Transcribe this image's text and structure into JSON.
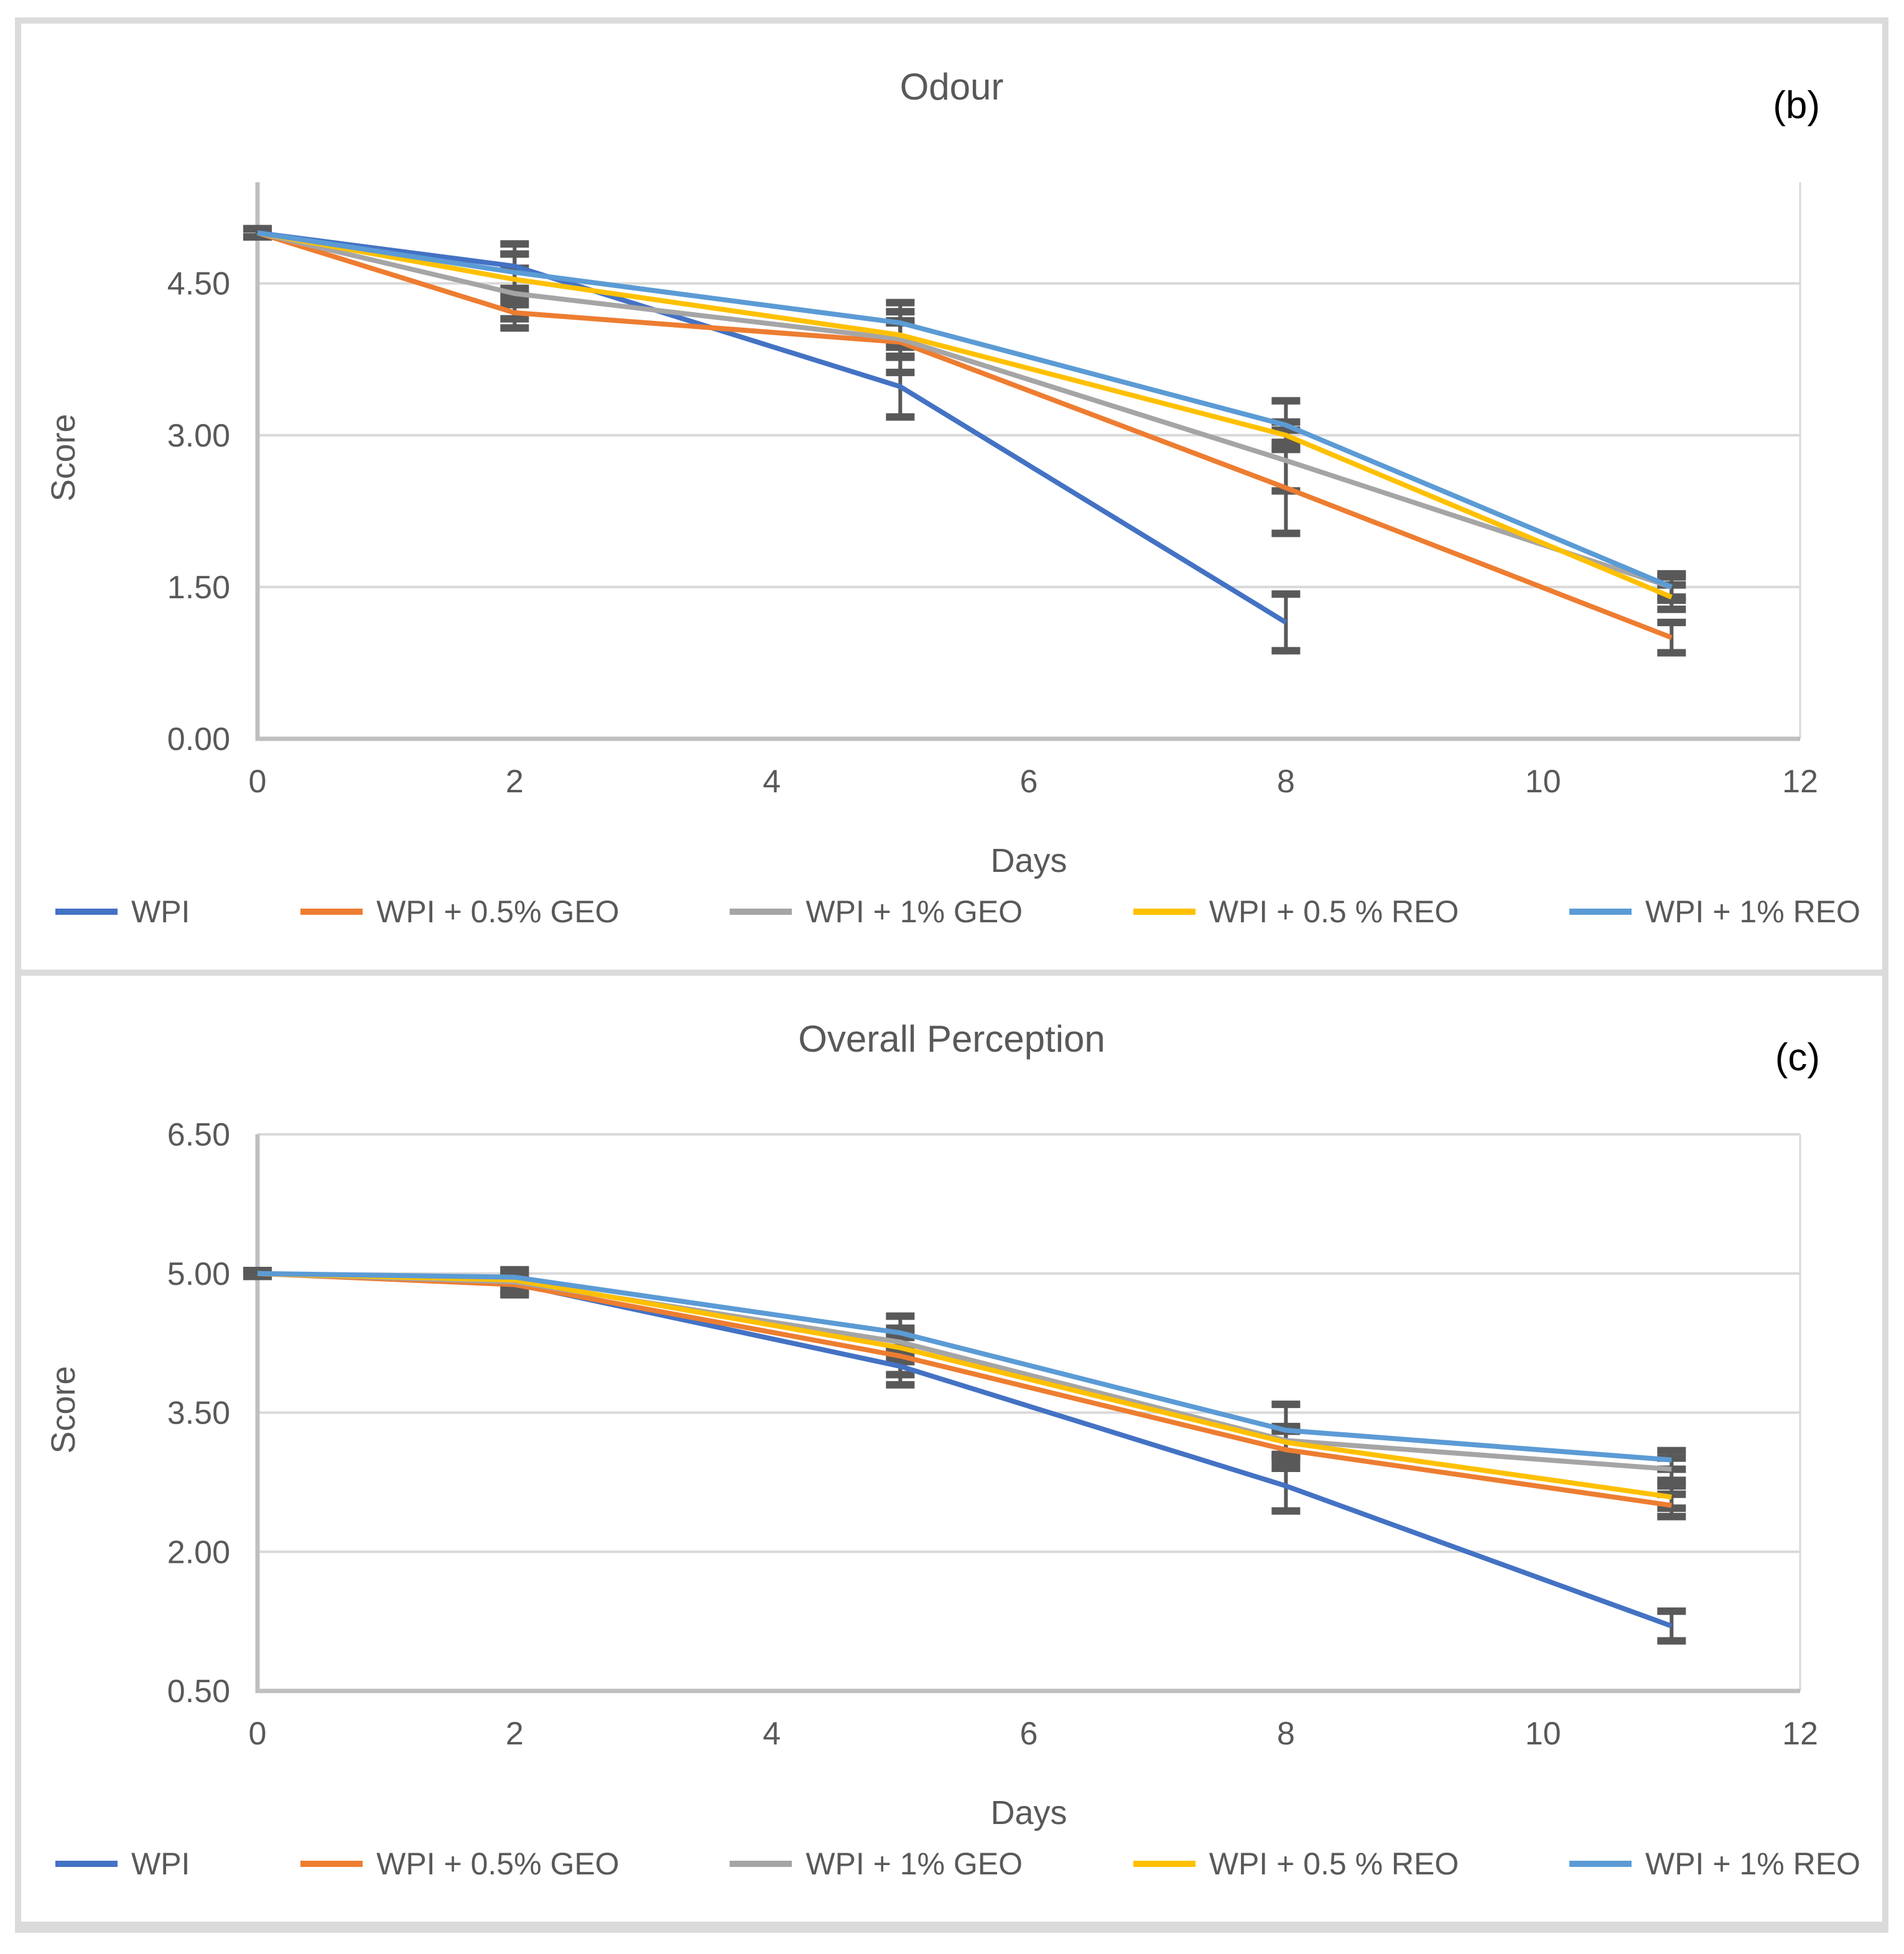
{
  "figure": {
    "background": "#FFFFFF",
    "border_color": "#DBDBDB",
    "gridline_color": "#D9D9D9",
    "axis_line_color": "#BFBFBF",
    "error_bar_color": "#595959",
    "text_color": "#595959",
    "panel_label_color": "#000000"
  },
  "chart_data": [
    {
      "type": "line",
      "id": "odour",
      "title": "Odour",
      "panel_label": "(b)",
      "xlabel": "Days",
      "ylabel": "Score",
      "grid": true,
      "legend_position": "bottom",
      "xlim": [
        0,
        12
      ],
      "ylim": [
        0,
        5.5
      ],
      "x_ticks": [
        "0",
        "2",
        "4",
        "6",
        "8",
        "10",
        "12"
      ],
      "y_ticks": [
        "0.00",
        "1.50",
        "3.00",
        "4.50"
      ],
      "x": [
        0,
        2,
        5,
        8,
        11
      ],
      "series": [
        {
          "name": "WPI",
          "color": "#4472C4",
          "values": [
            5.0,
            4.67,
            3.48,
            1.15,
            null
          ],
          "errors": [
            0.04,
            0.22,
            0.3,
            0.28,
            null
          ]
        },
        {
          "name": "WPI + 0.5% GEO",
          "color": "#ED7D31",
          "values": [
            5.0,
            4.21,
            3.92,
            2.48,
            1.0
          ],
          "errors": [
            0.04,
            0.15,
            0.3,
            0.45,
            0.15
          ]
        },
        {
          "name": "WPI + 1% GEO",
          "color": "#A5A5A5",
          "values": [
            5.0,
            4.4,
            3.95,
            2.75,
            1.5
          ],
          "errors": [
            0.04,
            0.25,
            0.18,
            0.3,
            0.1
          ]
        },
        {
          "name": "WPI + 0.5 % REO",
          "color": "#FFC000",
          "values": [
            5.0,
            4.54,
            3.99,
            3.0,
            1.4
          ],
          "errors": [
            0.04,
            0.25,
            0.12,
            0.13,
            0.12
          ]
        },
        {
          "name": "WPI + 1% REO",
          "color": "#5B9BD5",
          "values": [
            5.0,
            4.61,
            4.11,
            3.1,
            1.5
          ],
          "errors": [
            0.04,
            0.18,
            0.2,
            0.24,
            0.13
          ]
        }
      ]
    },
    {
      "type": "line",
      "id": "overall-perception",
      "title": "Overall Perception",
      "panel_label": "(c)",
      "xlabel": "Days",
      "ylabel": "Score",
      "grid": true,
      "legend_position": "bottom",
      "xlim": [
        0,
        12
      ],
      "ylim": [
        0.5,
        6.5
      ],
      "x_ticks": [
        "0",
        "2",
        "4",
        "6",
        "8",
        "10",
        "12"
      ],
      "y_ticks": [
        "0.50",
        "2.00",
        "3.50",
        "5.00",
        "6.50"
      ],
      "x": [
        0,
        2,
        5,
        8,
        11
      ],
      "series": [
        {
          "name": "WPI",
          "color": "#4472C4",
          "values": [
            5.0,
            4.89,
            4.0,
            2.71,
            1.2
          ],
          "errors": [
            0.03,
            0.12,
            0.2,
            0.27,
            0.16
          ]
        },
        {
          "name": "WPI + 0.5% GEO",
          "color": "#ED7D31",
          "values": [
            5.0,
            4.88,
            4.11,
            3.1,
            2.5
          ],
          "errors": [
            0.03,
            0.1,
            0.2,
            0.2,
            0.12
          ]
        },
        {
          "name": "WPI + 1% GEO",
          "color": "#A5A5A5",
          "values": [
            5.0,
            4.91,
            4.26,
            3.2,
            2.89
          ],
          "errors": [
            0.03,
            0.12,
            0.15,
            0.15,
            0.12
          ]
        },
        {
          "name": "WPI + 0.5 % REO",
          "color": "#FFC000",
          "values": [
            5.0,
            4.93,
            4.2,
            3.18,
            2.59
          ],
          "errors": [
            0.03,
            0.1,
            0.15,
            0.15,
            0.12
          ]
        },
        {
          "name": "WPI + 1% REO",
          "color": "#5B9BD5",
          "values": [
            5.0,
            4.96,
            4.36,
            3.31,
            2.99
          ],
          "errors": [
            0.03,
            0.08,
            0.18,
            0.28,
            0.1
          ]
        }
      ]
    }
  ]
}
